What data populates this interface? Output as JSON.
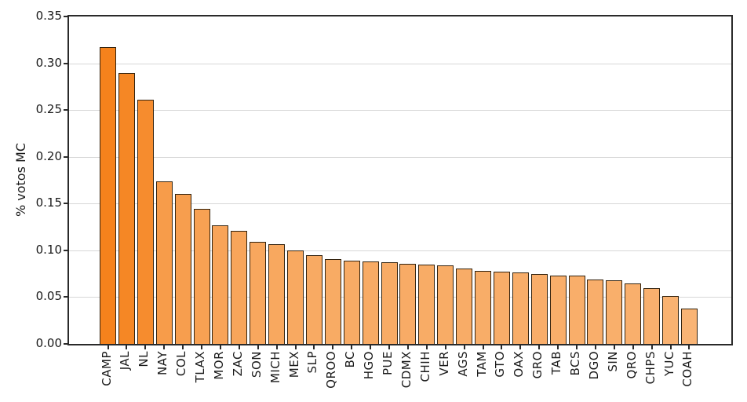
{
  "chart_data": {
    "type": "bar",
    "title": "",
    "xlabel": "",
    "ylabel": "% votos MC",
    "ylim": [
      0,
      0.35
    ],
    "ytick_labels": [
      "0.00",
      "0.05",
      "0.10",
      "0.15",
      "0.20",
      "0.25",
      "0.30",
      "0.35"
    ],
    "grid": "horizontal",
    "legend": "none",
    "categories": [
      "CAMP",
      "JAL",
      "NL",
      "NAY",
      "COL",
      "TLAX",
      "MOR",
      "ZAC",
      "SON",
      "MICH",
      "MEX",
      "SLP",
      "QROO",
      "BC",
      "HGO",
      "PUE",
      "CDMX",
      "CHIH",
      "VER",
      "AGS",
      "TAM",
      "GTO",
      "OAX",
      "GRO",
      "TAB",
      "BCS",
      "DGO",
      "SIN",
      "QRO",
      "CHPS",
      "YUC",
      "COAH"
    ],
    "values": [
      0.317,
      0.29,
      0.261,
      0.174,
      0.16,
      0.144,
      0.127,
      0.121,
      0.109,
      0.107,
      0.1,
      0.095,
      0.091,
      0.089,
      0.088,
      0.087,
      0.086,
      0.085,
      0.084,
      0.081,
      0.078,
      0.077,
      0.076,
      0.075,
      0.073,
      0.073,
      0.069,
      0.068,
      0.065,
      0.06,
      0.051,
      0.038
    ],
    "bar_colors": [
      "#f5821c",
      "#f58725",
      "#f68c2e",
      "#f79c4a",
      "#f79e4e",
      "#f8a153",
      "#f8a459",
      "#f8a55a",
      "#f8a75e",
      "#f8a85f",
      "#f8a961",
      "#f8aa63",
      "#f8ab64",
      "#f8ab65",
      "#f8ab65",
      "#f8ab65",
      "#f8ab66",
      "#f8ac66",
      "#f8ac66",
      "#f8ac67",
      "#f8ad68",
      "#f8ad69",
      "#f8ad69",
      "#f9ad69",
      "#f9ae6a",
      "#f9ae6a",
      "#f9ae6b",
      "#f9af6b",
      "#f9af6c",
      "#f9b06e",
      "#f9b271",
      "#f9b475"
    ],
    "bar_edge_color": "#33230f",
    "grid_color": "#d7d7d7",
    "spine_color": "#2a2a2a",
    "text_color": "#1a1a1a",
    "background_color": "#ffffff"
  }
}
